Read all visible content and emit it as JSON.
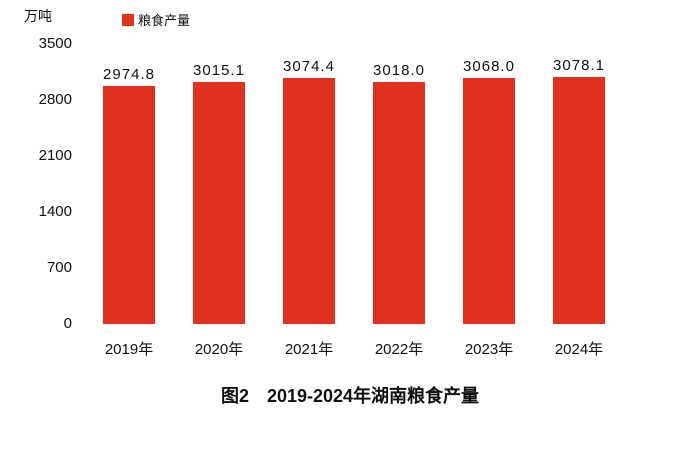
{
  "title": "图2　2019-2024年湖南粮食产量",
  "legend": {
    "label": "粮食产量",
    "swatch_color": "#e0301e"
  },
  "chart_data": {
    "type": "bar",
    "title": "图2　2019-2024年湖南粮食产量",
    "ylabel": "万吨",
    "xlabel": "",
    "categories": [
      "2019年",
      "2020年",
      "2021年",
      "2022年",
      "2023年",
      "2024年"
    ],
    "values": [
      2974.8,
      3015.1,
      3074.4,
      3018.0,
      3068.0,
      3078.1
    ],
    "value_labels": [
      "2974.8",
      "3015.1",
      "3074.4",
      "3018.0",
      "3068.0",
      "3078.1"
    ],
    "yticks": [
      0,
      700,
      1400,
      2100,
      2800,
      3500
    ],
    "ylim": [
      0,
      3500
    ],
    "bar_color": "#e0301e",
    "legend_entries": [
      "粮食产量"
    ],
    "legend_position": "top",
    "grid": false
  }
}
